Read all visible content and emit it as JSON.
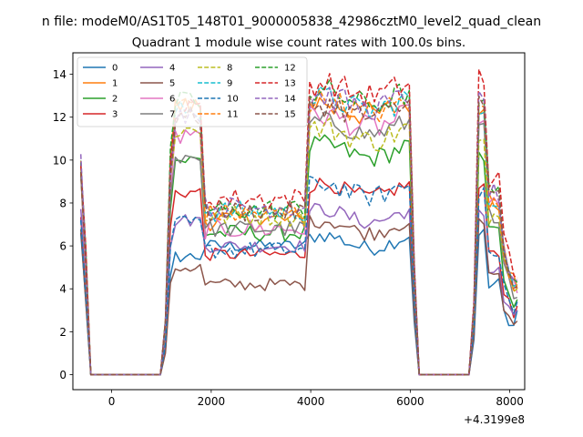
{
  "suptitle": "n file: modeM0/AS1T05_148T01_9000005838_42986cztM0_level2_quad_clean",
  "chart_data": {
    "type": "line",
    "title": "Quadrant 1 module wise count rates with 100.0s bins.",
    "xlabel": "",
    "ylabel": "",
    "x_offset_label": "+4.3199e8",
    "xlim": [
      -780,
      8300
    ],
    "ylim": [
      -0.7,
      15.0
    ],
    "xticks": [
      0,
      2000,
      4000,
      6000,
      8000
    ],
    "yticks": [
      0,
      2,
      4,
      6,
      8,
      10,
      12,
      14
    ],
    "xtick_labels": [
      "0",
      "2000",
      "4000",
      "6000",
      "8000"
    ],
    "ytick_labels": [
      "0",
      "2",
      "4",
      "6",
      "8",
      "10",
      "12",
      "14"
    ],
    "grid": false,
    "legend": {
      "placement": "top-left",
      "columns": 4
    },
    "series": [
      {
        "name": "0",
        "color": "#1f77b4",
        "dash": "solid",
        "level": [
          6.5,
          5.5,
          6.0,
          6.2,
          6.5,
          6.3,
          3.0
        ],
        "jitter": 0.3
      },
      {
        "name": "1",
        "color": "#ff7f0e",
        "dash": "solid",
        "level": [
          9.6,
          12.5,
          7.2,
          12.4,
          12.4,
          12.3,
          4.0
        ],
        "jitter": 0.5
      },
      {
        "name": "2",
        "color": "#2ca02c",
        "dash": "solid",
        "level": [
          9.6,
          10.0,
          6.6,
          10.4,
          10.2,
          10.0,
          3.5
        ],
        "jitter": 0.4
      },
      {
        "name": "3",
        "color": "#d62728",
        "dash": "solid",
        "level": [
          7.5,
          8.5,
          5.6,
          8.6,
          8.6,
          8.6,
          3.2
        ],
        "jitter": 0.3
      },
      {
        "name": "4",
        "color": "#9467bd",
        "dash": "solid",
        "level": [
          8.0,
          7.2,
          6.0,
          7.4,
          7.4,
          7.6,
          3.0
        ],
        "jitter": 0.3
      },
      {
        "name": "5",
        "color": "#8c564b",
        "dash": "solid",
        "level": [
          6.5,
          5.0,
          4.2,
          6.9,
          7.2,
          7.4,
          2.5
        ],
        "jitter": 0.3
      },
      {
        "name": "6",
        "color": "#e377c2",
        "dash": "solid",
        "level": [
          9.0,
          11.0,
          6.8,
          11.8,
          12.0,
          11.8,
          3.8
        ],
        "jitter": 0.5
      },
      {
        "name": "7",
        "color": "#7f7f7f",
        "dash": "solid",
        "level": [
          9.0,
          10.2,
          6.8,
          11.5,
          11.5,
          11.5,
          3.6
        ],
        "jitter": 0.4
      },
      {
        "name": "8",
        "color": "#bcbd22",
        "dash": "dashed",
        "level": [
          9.4,
          11.4,
          7.4,
          11.2,
          11.4,
          11.2,
          4.0
        ],
        "jitter": 0.5
      },
      {
        "name": "9",
        "color": "#17becf",
        "dash": "dashed",
        "level": [
          9.8,
          12.3,
          7.6,
          12.6,
          12.6,
          12.5,
          4.2
        ],
        "jitter": 0.5
      },
      {
        "name": "10",
        "color": "#1f77b4",
        "dash": "dashed",
        "level": [
          7.0,
          7.0,
          5.8,
          8.6,
          8.6,
          8.5,
          3.4
        ],
        "jitter": 0.4
      },
      {
        "name": "11",
        "color": "#ff7f0e",
        "dash": "dashed",
        "level": [
          9.8,
          12.6,
          7.5,
          12.5,
          12.6,
          12.5,
          4.2
        ],
        "jitter": 0.5
      },
      {
        "name": "12",
        "color": "#2ca02c",
        "dash": "dashed",
        "level": [
          9.8,
          12.7,
          7.7,
          12.9,
          13.0,
          12.9,
          4.3
        ],
        "jitter": 0.5
      },
      {
        "name": "13",
        "color": "#d62728",
        "dash": "dashed",
        "level": [
          10.0,
          12.4,
          8.2,
          13.3,
          13.9,
          13.5,
          4.5
        ],
        "jitter": 0.5
      },
      {
        "name": "14",
        "color": "#9467bd",
        "dash": "dashed",
        "level": [
          10.0,
          12.2,
          7.8,
          12.7,
          13.0,
          12.9,
          4.4
        ],
        "jitter": 0.5
      },
      {
        "name": "15",
        "color": "#8c564b",
        "dash": "dashed",
        "level": [
          9.5,
          12.0,
          7.6,
          12.3,
          12.7,
          12.4,
          4.1
        ],
        "jitter": 0.5
      }
    ],
    "segments": [
      {
        "start": -650,
        "end": -400
      },
      {
        "start": -400,
        "end": 1050,
        "zero": true
      },
      {
        "start": 1050,
        "end": 1700
      },
      {
        "start": 1900,
        "end": 4000
      },
      {
        "start": 4000,
        "end": 6000
      },
      {
        "start": 6000,
        "end": 7250,
        "zero": true
      },
      {
        "start": 7250,
        "end": 8150
      }
    ]
  }
}
